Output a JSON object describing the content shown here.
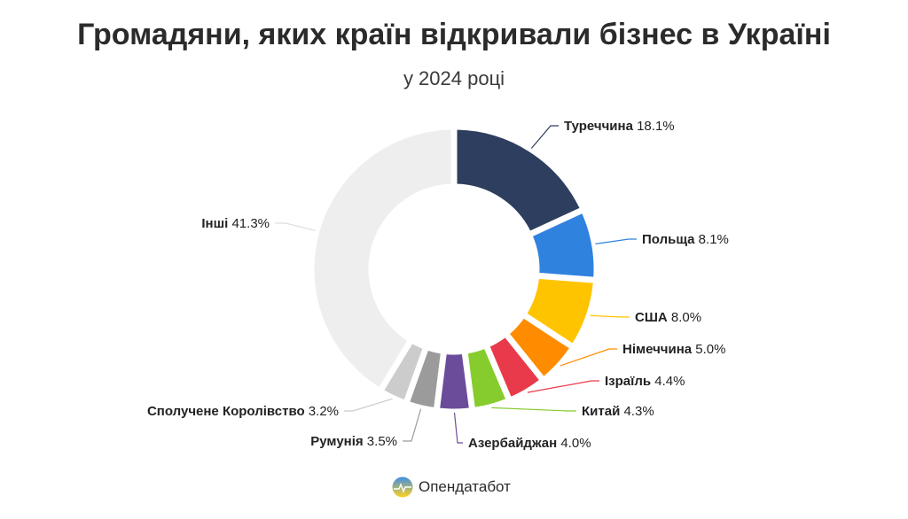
{
  "chart_data": {
    "type": "pie",
    "title": "Громадяни, яких країн відкривали бізнес в Україні",
    "subtitle": "у 2024 році",
    "slices": [
      {
        "label": "Туреччина",
        "value": 18.1,
        "value_text": "18.1%",
        "color": "#2e3e5e"
      },
      {
        "label": "Польща",
        "value": 8.1,
        "value_text": "8.1%",
        "color": "#2f82de"
      },
      {
        "label": "США",
        "value": 8.0,
        "value_text": "8.0%",
        "color": "#ffc400"
      },
      {
        "label": "Німеччина",
        "value": 5.0,
        "value_text": "5.0%",
        "color": "#ff8c00"
      },
      {
        "label": "Ізраїль",
        "value": 4.4,
        "value_text": "4.4%",
        "color": "#e83a4a"
      },
      {
        "label": "Китай",
        "value": 4.3,
        "value_text": "4.3%",
        "color": "#86cc2c"
      },
      {
        "label": "Азербайджан",
        "value": 4.0,
        "value_text": "4.0%",
        "color": "#6b4c9a"
      },
      {
        "label": "Румунія",
        "value": 3.5,
        "value_text": "3.5%",
        "color": "#9b9b9b"
      },
      {
        "label": "Сполучене Королівство",
        "value": 3.2,
        "value_text": "3.2%",
        "color": "#cccccc"
      },
      {
        "label": "Інші",
        "value": 41.3,
        "value_text": "41.3%",
        "color": "#eeeeee"
      }
    ]
  },
  "footer": {
    "brand": "Опендатабот",
    "icon": "opendatabot-logo-icon"
  }
}
